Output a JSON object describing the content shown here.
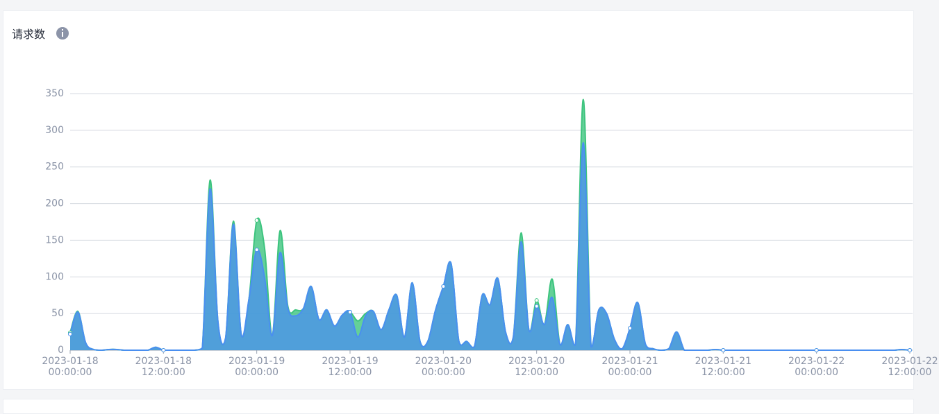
{
  "title": "请求数",
  "chart_data": {
    "type": "area",
    "categories": [
      "2023-01-18 00:00:00",
      null,
      null,
      null,
      null,
      null,
      null,
      null,
      null,
      null,
      null,
      null,
      "2023-01-18 12:00:00",
      null,
      null,
      null,
      null,
      null,
      null,
      null,
      null,
      null,
      null,
      null,
      "2023-01-19 00:00:00",
      null,
      null,
      null,
      null,
      null,
      null,
      null,
      null,
      null,
      null,
      null,
      "2023-01-19 12:00:00",
      null,
      null,
      null,
      null,
      null,
      null,
      null,
      null,
      null,
      null,
      null,
      "2023-01-20 00:00:00",
      null,
      null,
      null,
      null,
      null,
      null,
      null,
      null,
      null,
      null,
      null,
      "2023-01-20 12:00:00",
      null,
      null,
      null,
      null,
      null,
      null,
      null,
      null,
      null,
      null,
      null,
      "2023-01-21 00:00:00",
      null,
      null,
      null,
      null,
      null,
      null,
      null,
      null,
      null,
      null,
      null,
      "2023-01-21 12:00:00",
      null,
      null,
      null,
      null,
      null,
      null,
      null,
      null,
      null,
      null,
      null,
      "2023-01-22 00:00:00",
      null,
      null,
      null,
      null,
      null,
      null,
      null,
      null,
      null,
      null,
      null,
      "2023-01-22 12:00:00"
    ],
    "series": [
      {
        "color": "#3dc47e",
        "values": [
          24,
          53,
          10,
          1,
          0,
          1,
          1,
          0,
          0,
          0,
          0,
          4,
          0,
          0,
          0,
          0,
          0,
          3,
          232,
          40,
          17,
          176,
          22,
          70,
          177,
          140,
          20,
          163,
          60,
          55,
          57,
          87,
          42,
          55,
          33,
          48,
          52,
          40,
          50,
          53,
          28,
          55,
          75,
          18,
          92,
          12,
          12,
          55,
          87,
          118,
          12,
          12,
          5,
          75,
          62,
          98,
          25,
          18,
          160,
          28,
          68,
          35,
          97,
          8,
          35,
          8,
          342,
          5,
          55,
          50,
          15,
          2,
          30,
          65,
          8,
          2,
          0,
          2,
          25,
          0,
          0,
          0,
          0,
          1,
          0,
          0,
          0,
          0,
          0,
          0,
          0,
          0,
          0,
          0,
          0,
          0,
          0,
          0,
          0,
          0,
          0,
          0,
          0,
          0,
          0,
          0,
          0,
          1,
          0
        ]
      },
      {
        "color": "#4a8ff0",
        "values": [
          22,
          52,
          10,
          1,
          0,
          1,
          1,
          0,
          0,
          0,
          0,
          4,
          0,
          0,
          0,
          0,
          0,
          3,
          220,
          40,
          17,
          172,
          22,
          70,
          137,
          100,
          20,
          133,
          57,
          47,
          57,
          87,
          42,
          55,
          33,
          48,
          52,
          18,
          47,
          53,
          28,
          55,
          75,
          18,
          92,
          12,
          12,
          55,
          87,
          118,
          12,
          12,
          5,
          75,
          62,
          98,
          25,
          18,
          148,
          28,
          60,
          35,
          72,
          8,
          35,
          8,
          283,
          5,
          55,
          50,
          15,
          2,
          30,
          65,
          8,
          2,
          0,
          2,
          25,
          0,
          0,
          0,
          0,
          1,
          0,
          0,
          0,
          0,
          0,
          0,
          0,
          0,
          0,
          0,
          0,
          0,
          0,
          0,
          0,
          0,
          0,
          0,
          0,
          0,
          0,
          0,
          0,
          1,
          0
        ]
      }
    ],
    "ylim": [
      0,
      350
    ],
    "yticks": [
      0,
      50,
      100,
      150,
      200,
      250,
      300,
      350
    ],
    "grid": true,
    "smooth": true
  }
}
